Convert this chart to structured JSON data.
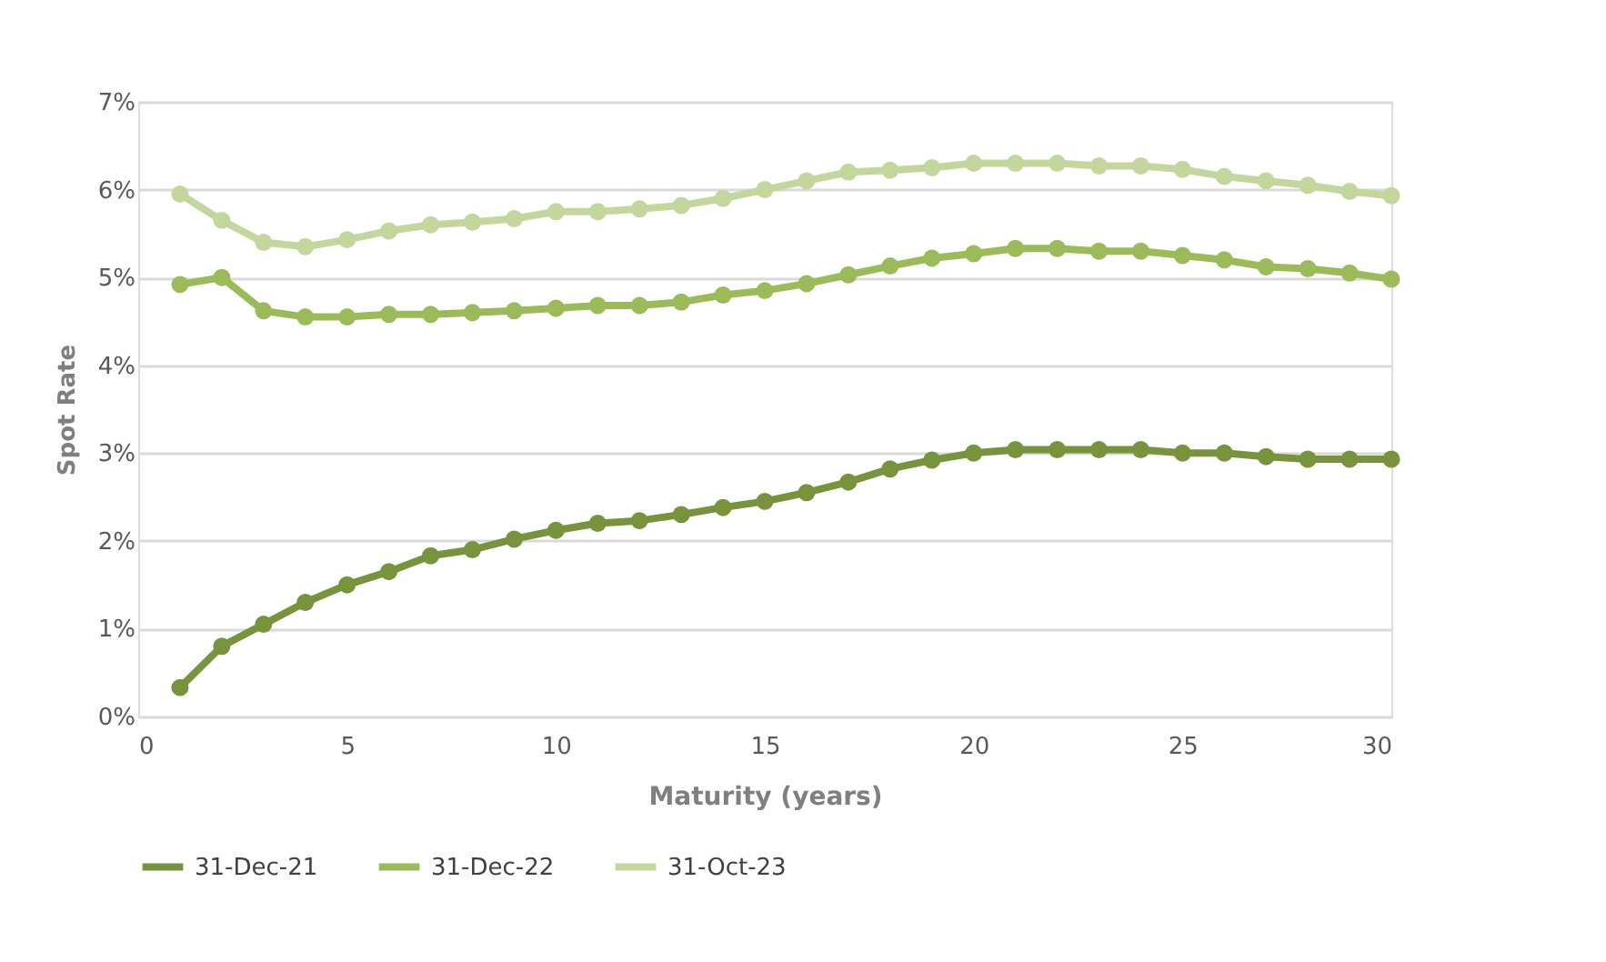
{
  "chart_data": {
    "type": "line",
    "xlabel": "Maturity (years)",
    "ylabel": "Spot Rate",
    "x": [
      1,
      2,
      3,
      4,
      5,
      6,
      7,
      8,
      9,
      10,
      11,
      12,
      13,
      14,
      15,
      16,
      17,
      18,
      19,
      20,
      21,
      22,
      23,
      24,
      25,
      26,
      27,
      28,
      29,
      30
    ],
    "series": [
      {
        "name": "31-Dec-21",
        "color": "#77933c",
        "values": [
          0.33,
          0.8,
          1.05,
          1.3,
          1.5,
          1.65,
          1.83,
          1.9,
          2.02,
          2.12,
          2.2,
          2.23,
          2.3,
          2.38,
          2.45,
          2.55,
          2.67,
          2.82,
          2.92,
          3.0,
          3.04,
          3.04,
          3.04,
          3.04,
          3.0,
          3.0,
          2.96,
          2.93,
          2.93,
          2.93
        ]
      },
      {
        "name": "31-Dec-22",
        "color": "#9bbb59",
        "values": [
          4.92,
          5.0,
          4.62,
          4.55,
          4.55,
          4.58,
          4.58,
          4.6,
          4.62,
          4.65,
          4.68,
          4.68,
          4.72,
          4.8,
          4.85,
          4.93,
          5.03,
          5.13,
          5.22,
          5.27,
          5.33,
          5.33,
          5.3,
          5.3,
          5.25,
          5.2,
          5.12,
          5.1,
          5.05,
          4.98
        ]
      },
      {
        "name": "31-Oct-23",
        "color": "#c3d69b",
        "values": [
          5.95,
          5.65,
          5.4,
          5.35,
          5.43,
          5.53,
          5.6,
          5.63,
          5.67,
          5.75,
          5.75,
          5.78,
          5.82,
          5.9,
          6.0,
          6.1,
          6.2,
          6.22,
          6.25,
          6.3,
          6.3,
          6.3,
          6.27,
          6.27,
          6.23,
          6.15,
          6.1,
          6.05,
          5.98,
          5.93
        ]
      }
    ],
    "xlim": [
      0,
      30
    ],
    "xticks": [
      0,
      5,
      10,
      15,
      20,
      25,
      30
    ],
    "ylim": [
      0,
      7
    ],
    "yticks": [
      {
        "value": 0,
        "label": "0%"
      },
      {
        "value": 1,
        "label": "1%"
      },
      {
        "value": 2,
        "label": "2%"
      },
      {
        "value": 3,
        "label": "3%"
      },
      {
        "value": 4,
        "label": "4%"
      },
      {
        "value": 5,
        "label": "5%"
      },
      {
        "value": 6,
        "label": "6%"
      },
      {
        "value": 7,
        "label": "7%"
      }
    ],
    "grid": "y",
    "legend": "bottom",
    "marker": "circle",
    "line_style": "solid"
  }
}
